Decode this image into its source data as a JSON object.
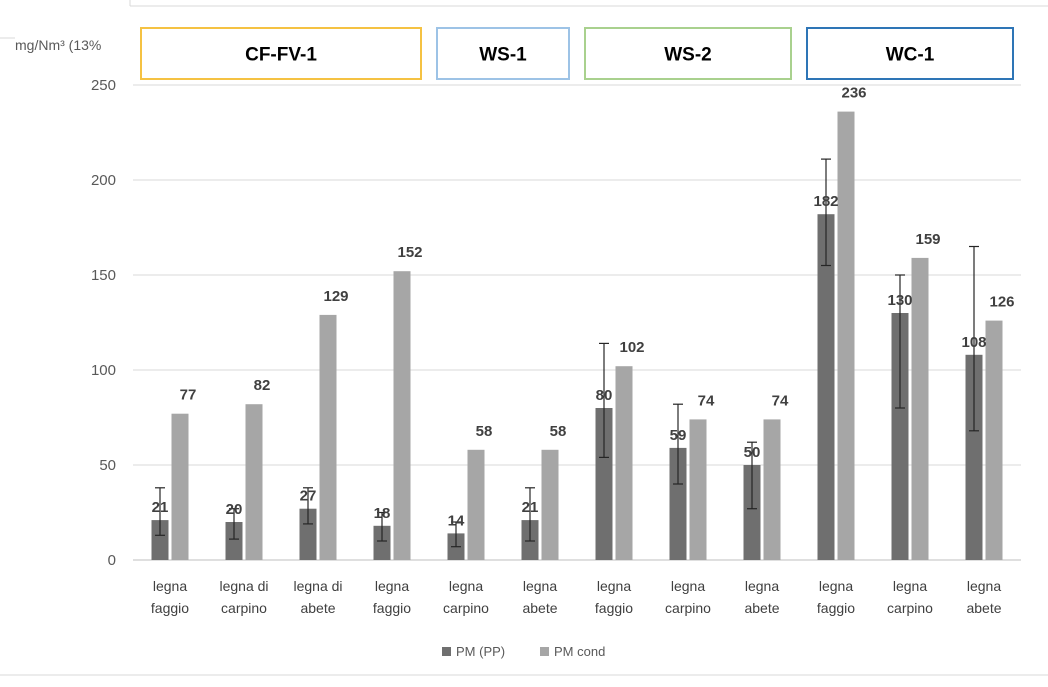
{
  "chart_data": {
    "type": "bar",
    "y_unit_label": "mg/Nm³ (13%",
    "ylim": [
      0,
      250
    ],
    "y_ticks": [
      0,
      50,
      100,
      150,
      200,
      250
    ],
    "grid": true,
    "legend_position": "bottom",
    "groups": [
      {
        "label": "CF-FV-1",
        "color": "#f5c243",
        "category_count": 4
      },
      {
        "label": "WS-1",
        "color": "#9dc3e6",
        "category_count": 2
      },
      {
        "label": "WS-2",
        "color": "#a9d18e",
        "category_count": 3
      },
      {
        "label": "WC-1",
        "color": "#2e75b6",
        "category_count": 3
      }
    ],
    "categories": [
      [
        "legna",
        "faggio"
      ],
      [
        "legna di",
        "carpino"
      ],
      [
        "legna di",
        "abete"
      ],
      [
        "legna",
        "faggio"
      ],
      [
        "legna",
        "carpino"
      ],
      [
        "legna",
        "abete"
      ],
      [
        "legna",
        "faggio"
      ],
      [
        "legna",
        "carpino"
      ],
      [
        "legna",
        "abete"
      ],
      [
        "legna",
        "faggio"
      ],
      [
        "legna",
        "carpino"
      ],
      [
        "legna",
        "abete"
      ]
    ],
    "series": [
      {
        "name": "PM (PP)",
        "color": "#6f6f6f",
        "values": [
          21,
          20,
          27,
          18,
          14,
          21,
          80,
          59,
          50,
          182,
          130,
          108
        ],
        "error_low": [
          13,
          11,
          19,
          10,
          7,
          10,
          54,
          40,
          27,
          155,
          80,
          68
        ],
        "error_high": [
          38,
          27,
          38,
          25,
          20,
          38,
          114,
          82,
          62,
          211,
          150,
          165
        ]
      },
      {
        "name": "PM cond",
        "color": "#a6a6a6",
        "values": [
          77,
          82,
          129,
          152,
          58,
          58,
          102,
          74,
          74,
          236,
          159,
          126
        ]
      }
    ]
  }
}
